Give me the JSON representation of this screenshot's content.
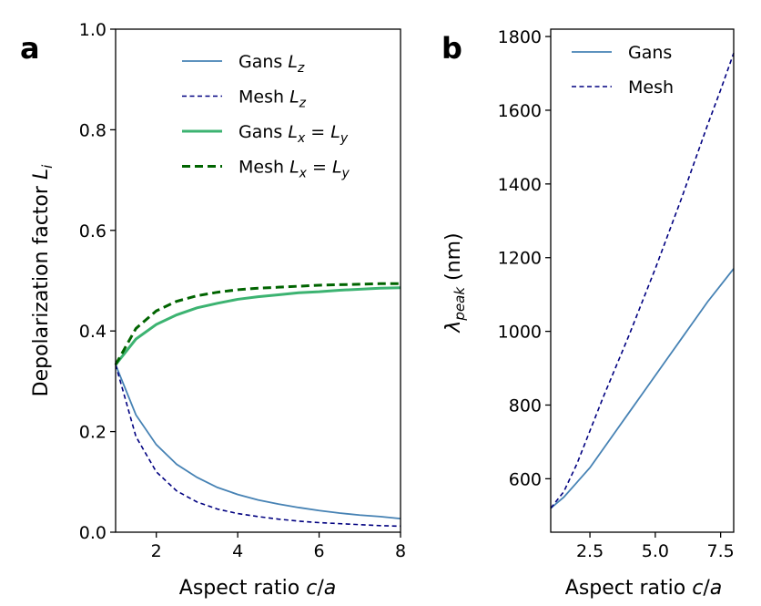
{
  "chart_data": [
    {
      "panel_label": "a",
      "type": "line",
      "xlabel": "Aspect ratio c/a",
      "ylabel": "Depolarization factor L_i",
      "xlim": [
        1,
        8
      ],
      "ylim": [
        0,
        1
      ],
      "xticks": [
        2,
        4,
        6,
        8
      ],
      "yticks": [
        0.0,
        0.2,
        0.4,
        0.6,
        0.8,
        1.0
      ],
      "xtick_labels": [
        "2",
        "4",
        "6",
        "8"
      ],
      "ytick_labels": [
        "0.0",
        "0.2",
        "0.4",
        "0.6",
        "0.8",
        "1.0"
      ],
      "legend_position": "top-right",
      "x": [
        1.0,
        1.5,
        2.0,
        2.5,
        3.0,
        3.5,
        4.0,
        4.5,
        5.0,
        5.5,
        6.0,
        6.5,
        7.0,
        7.5,
        8.0
      ],
      "series": [
        {
          "name": "Gans",
          "subscript": "z",
          "color": "#4682b4",
          "style": "solid",
          "values": [
            0.333,
            0.233,
            0.174,
            0.135,
            0.109,
            0.089,
            0.075,
            0.064,
            0.056,
            0.049,
            0.043,
            0.038,
            0.034,
            0.031,
            0.027
          ]
        },
        {
          "name": "Mesh",
          "subscript": "z",
          "color": "#000080",
          "style": "dashed",
          "values": [
            0.333,
            0.19,
            0.12,
            0.082,
            0.06,
            0.046,
            0.037,
            0.031,
            0.026,
            0.022,
            0.019,
            0.017,
            0.015,
            0.013,
            0.012
          ]
        },
        {
          "name": "Gans",
          "subscript": "x=y",
          "color": "#3cb371",
          "style": "solid-thick",
          "values": [
            0.333,
            0.384,
            0.413,
            0.432,
            0.446,
            0.455,
            0.463,
            0.468,
            0.472,
            0.476,
            0.478,
            0.481,
            0.483,
            0.485,
            0.486
          ]
        },
        {
          "name": "Mesh",
          "subscript": "x=y",
          "color": "#006400",
          "style": "dashed-thick",
          "values": [
            0.333,
            0.405,
            0.44,
            0.459,
            0.47,
            0.477,
            0.482,
            0.485,
            0.487,
            0.489,
            0.491,
            0.492,
            0.493,
            0.494,
            0.494
          ]
        }
      ]
    },
    {
      "panel_label": "b",
      "type": "line",
      "xlabel": "Aspect ratio c/a",
      "ylabel": "λpeak (nm)",
      "xlim": [
        1,
        8
      ],
      "ylim": [
        455,
        1820
      ],
      "xticks": [
        2.5,
        5.0,
        7.5
      ],
      "yticks": [
        600,
        800,
        1000,
        1200,
        1400,
        1600,
        1800
      ],
      "xtick_labels": [
        "2.5",
        "5.0",
        "7.5"
      ],
      "ytick_labels": [
        "600",
        "800",
        "1000",
        "1200",
        "1400",
        "1600",
        "1800"
      ],
      "legend_position": "top-left",
      "x": [
        1.0,
        1.5,
        2.0,
        2.5,
        3.0,
        3.5,
        4.0,
        4.5,
        5.0,
        5.5,
        6.0,
        6.5,
        7.0,
        7.5,
        8.0
      ],
      "series": [
        {
          "name": "Gans",
          "color": "#4682b4",
          "style": "solid",
          "values": [
            520,
            550,
            590,
            630,
            680,
            730,
            780,
            830,
            880,
            930,
            980,
            1030,
            1080,
            1125,
            1170
          ]
        },
        {
          "name": "Mesh",
          "color": "#000080",
          "style": "dashed",
          "values": [
            520,
            565,
            640,
            730,
            820,
            905,
            990,
            1080,
            1170,
            1265,
            1360,
            1460,
            1560,
            1655,
            1755
          ]
        }
      ]
    }
  ]
}
